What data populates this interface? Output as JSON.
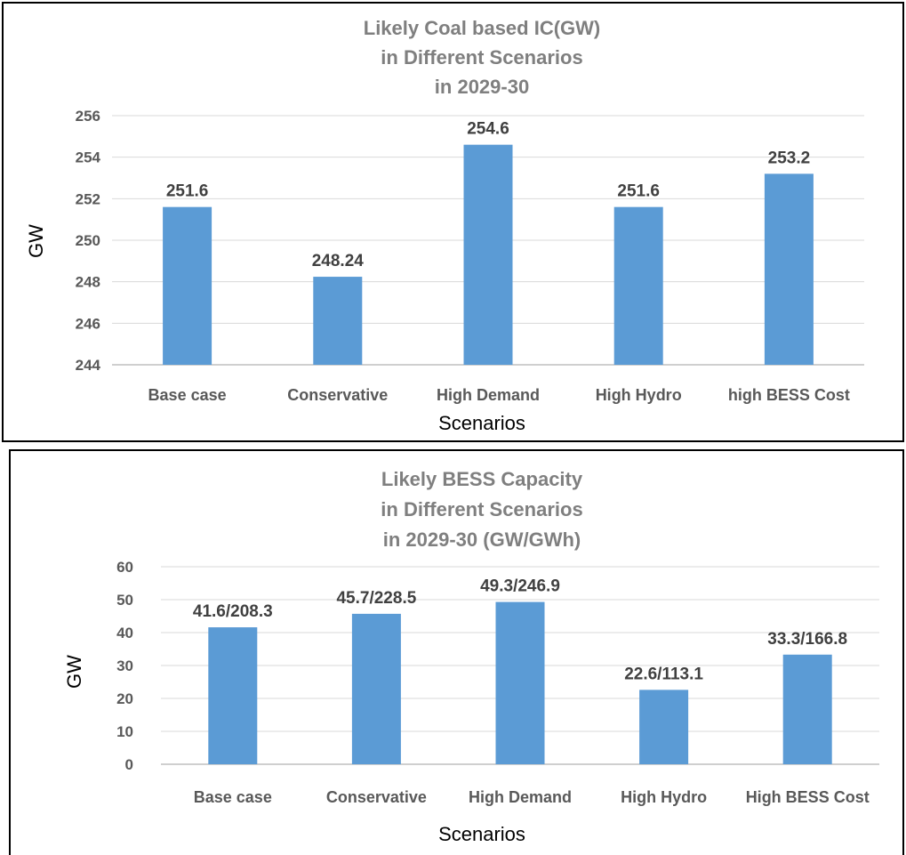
{
  "chart_data": [
    {
      "type": "bar",
      "title_lines": [
        "Likely Coal based IC(GW)",
        "in Different Scenarios",
        "in 2029-30"
      ],
      "xlabel": "Scenarios",
      "ylabel": "GW",
      "categories": [
        "Base case",
        "Conservative",
        "High Demand",
        "High Hydro",
        "high BESS Cost"
      ],
      "values": [
        251.6,
        248.24,
        254.6,
        251.6,
        253.2
      ],
      "data_labels": [
        "251.6",
        "248.24",
        "254.6",
        "251.6",
        "253.2"
      ],
      "ylim": [
        244,
        256
      ],
      "yticks": [
        244,
        246,
        248,
        250,
        252,
        254,
        256
      ],
      "grid": true,
      "bar_color": "#5b9bd5"
    },
    {
      "type": "bar",
      "title_lines": [
        "Likely BESS Capacity",
        "in Different Scenarios",
        "in 2029-30 (GW/GWh)"
      ],
      "xlabel": "Scenarios",
      "ylabel": "GW",
      "categories": [
        "Base case",
        "Conservative",
        "High Demand",
        "High Hydro",
        "High BESS Cost"
      ],
      "values": [
        41.6,
        45.7,
        49.3,
        22.6,
        33.3
      ],
      "data_labels": [
        "41.6/208.3",
        "45.7/228.5",
        "49.3/246.9",
        "22.6/113.1",
        "33.3/166.8"
      ],
      "ylim": [
        0,
        60
      ],
      "yticks": [
        0,
        10,
        20,
        30,
        40,
        50,
        60
      ],
      "grid": true,
      "bar_color": "#5b9bd5"
    }
  ]
}
